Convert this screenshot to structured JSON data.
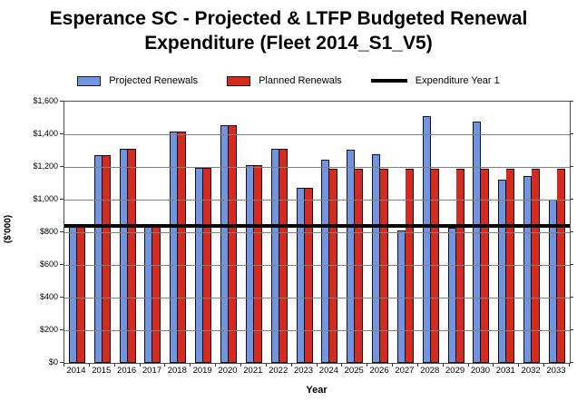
{
  "window": {
    "background": "#ffffff"
  },
  "chart_data": {
    "type": "bar",
    "title": "Esperance SC - Projected & LTFP Budgeted Renewal Expenditure (Fleet 2014_S1_V5)",
    "title_lines": [
      "Esperance SC - Projected & LTFP Budgeted Renewal",
      "Expenditure (Fleet 2014_S1_V5)"
    ],
    "xlabel": "Year",
    "ylabel": "($'000)",
    "ylim": [
      0,
      1600
    ],
    "ytick_step": 200,
    "ytick_labels": [
      "$0",
      "$200",
      "$400",
      "$600",
      "$800",
      "$1,000",
      "$1,200",
      "$1,400",
      "$1,600"
    ],
    "grid": true,
    "legend_position": "top",
    "categories": [
      "2014",
      "2015",
      "2016",
      "2017",
      "2018",
      "2019",
      "2020",
      "2021",
      "2022",
      "2023",
      "2024",
      "2025",
      "2026",
      "2027",
      "2028",
      "2029",
      "2030",
      "2031",
      "2032",
      "2033"
    ],
    "series": [
      {
        "name": "Projected Renewals",
        "color": "#7394E1",
        "border_color": "#111111",
        "values": [
          840,
          1275,
          1310,
          840,
          1415,
          1195,
          1455,
          1210,
          1310,
          1075,
          1245,
          1305,
          1280,
          810,
          1510,
          830,
          1480,
          1120,
          1145,
          1000
        ]
      },
      {
        "name": "Planned Renewals",
        "color": "#D42A20",
        "border_color": "#111111",
        "values": [
          840,
          1275,
          1310,
          840,
          1415,
          1195,
          1455,
          1210,
          1310,
          1075,
          1190,
          1190,
          1190,
          1190,
          1190,
          1190,
          1190,
          1190,
          1190,
          1190
        ]
      }
    ],
    "reference_line": {
      "name": "Expenditure Year 1",
      "value": 840,
      "color": "#000000",
      "thickness_px": 4
    },
    "colors": {
      "gridline": "#808080",
      "plot_border": "#4d4d4d",
      "text": "#000000"
    }
  }
}
